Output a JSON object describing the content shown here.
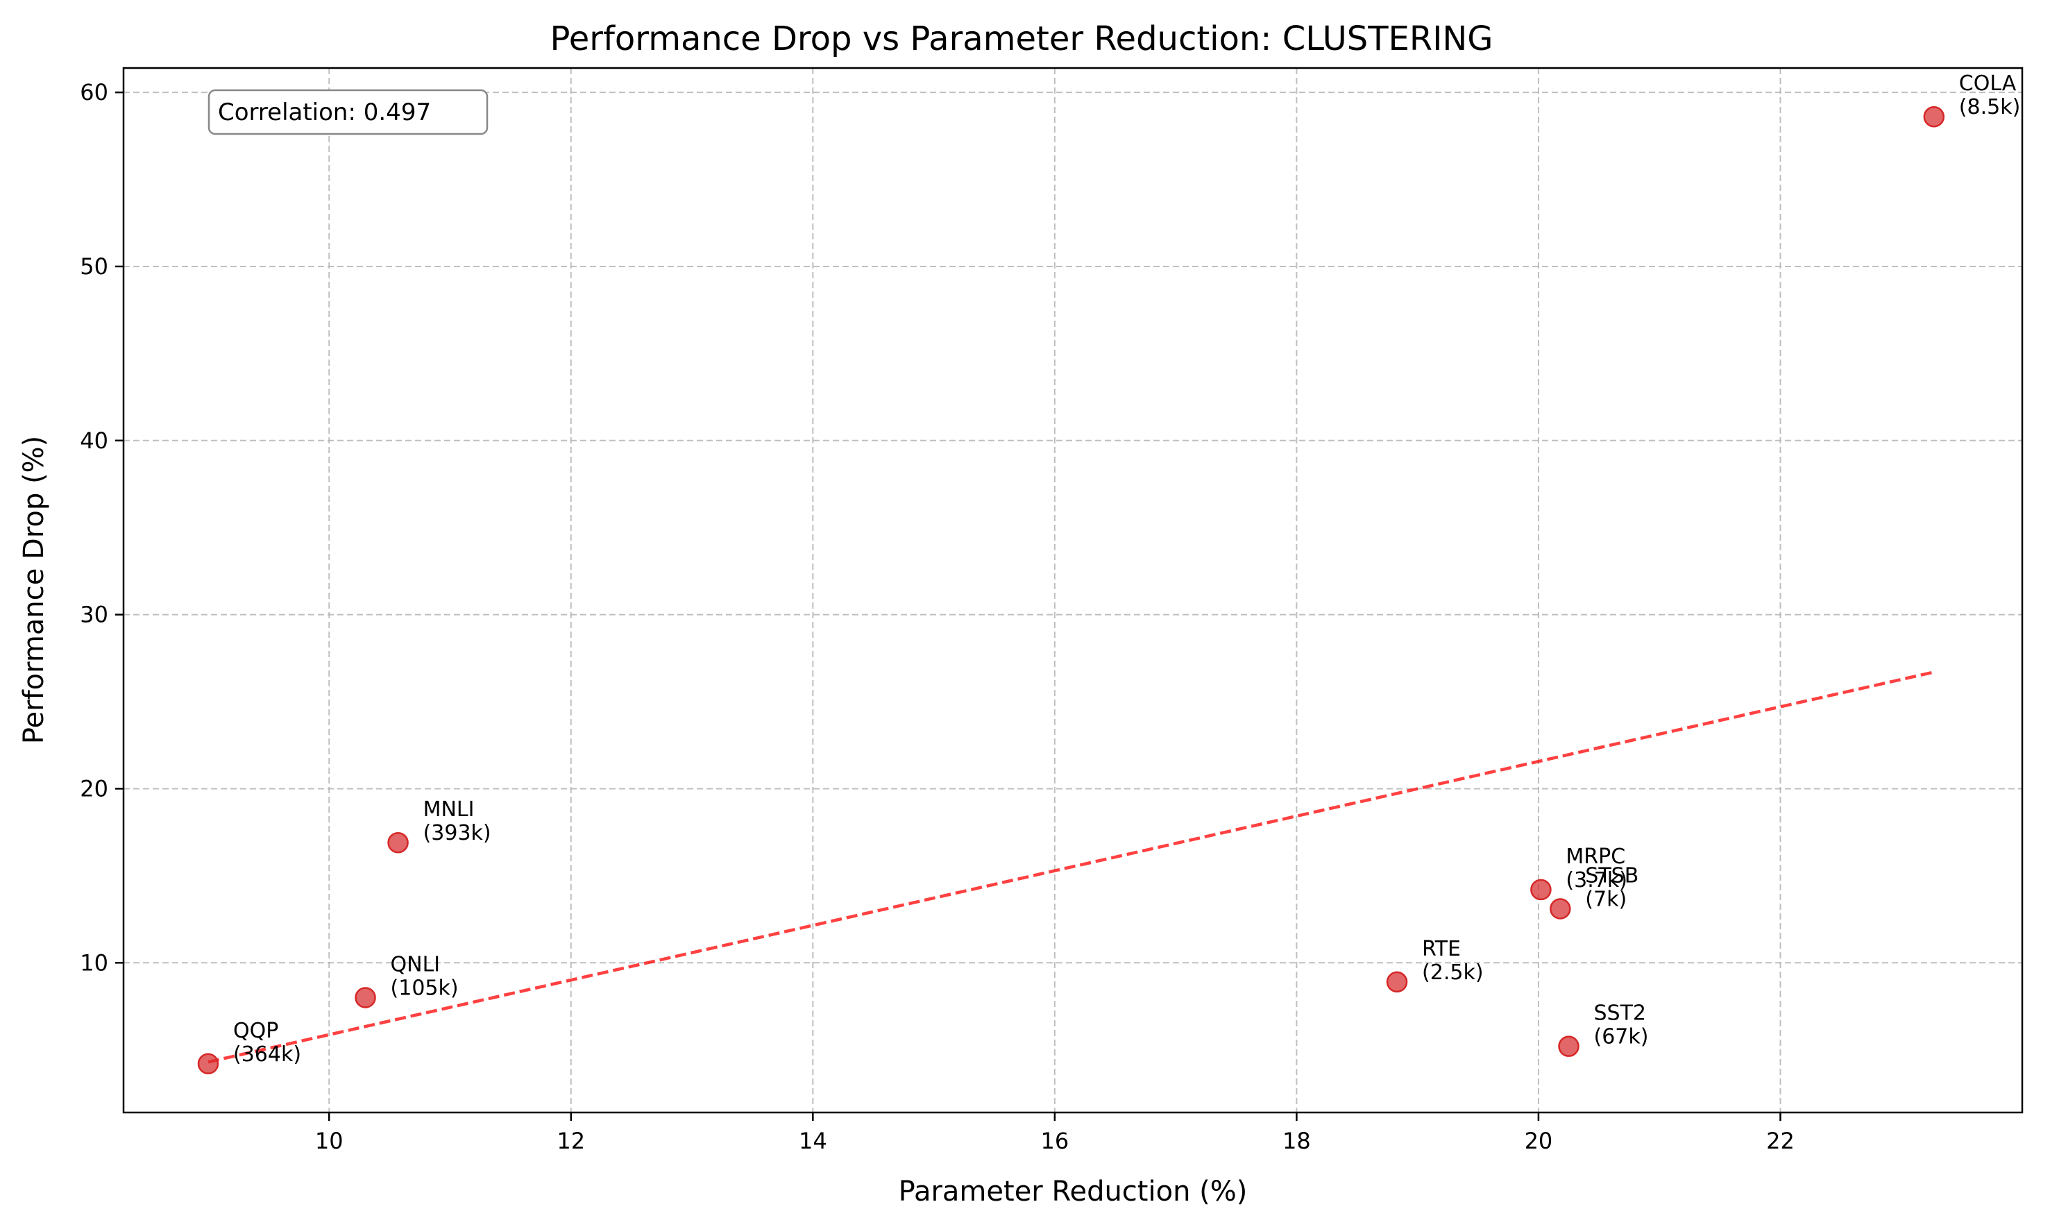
{
  "chart_data": {
    "type": "scatter",
    "title": "Performance Drop vs Parameter Reduction: CLUSTERING",
    "xlabel": "Parameter Reduction (%)",
    "ylabel": "Performance Drop (%)",
    "xlim": [
      8.3,
      24.0
    ],
    "ylim": [
      1.4,
      61.4
    ],
    "xticks": [
      10,
      12,
      14,
      16,
      18,
      20,
      22
    ],
    "yticks": [
      10,
      20,
      30,
      40,
      50,
      60
    ],
    "grid": true,
    "point_color": "#d62728",
    "trend_color": "#ff0000",
    "points": [
      {
        "label": "QQP",
        "size": "(364k)",
        "x": 9.0,
        "y": 4.2
      },
      {
        "label": "QNLI",
        "size": "(105k)",
        "x": 10.3,
        "y": 8.0
      },
      {
        "label": "MNLI",
        "size": "(393k)",
        "x": 10.57,
        "y": 16.9
      },
      {
        "label": "RTE",
        "size": "(2.5k)",
        "x": 18.83,
        "y": 8.9
      },
      {
        "label": "MRPC",
        "size": "(3.7k)",
        "x": 20.02,
        "y": 14.2
      },
      {
        "label": "STSB",
        "size": "(7k)",
        "x": 20.18,
        "y": 13.1
      },
      {
        "label": "SST2",
        "size": "(67k)",
        "x": 20.25,
        "y": 5.2
      },
      {
        "label": "COLA",
        "size": "(8.5k)",
        "x": 23.27,
        "y": 58.6
      }
    ],
    "trendline": {
      "x": [
        9.0,
        23.27
      ],
      "y": [
        4.3,
        26.7
      ]
    },
    "annotation": "Correlation: 0.497"
  }
}
